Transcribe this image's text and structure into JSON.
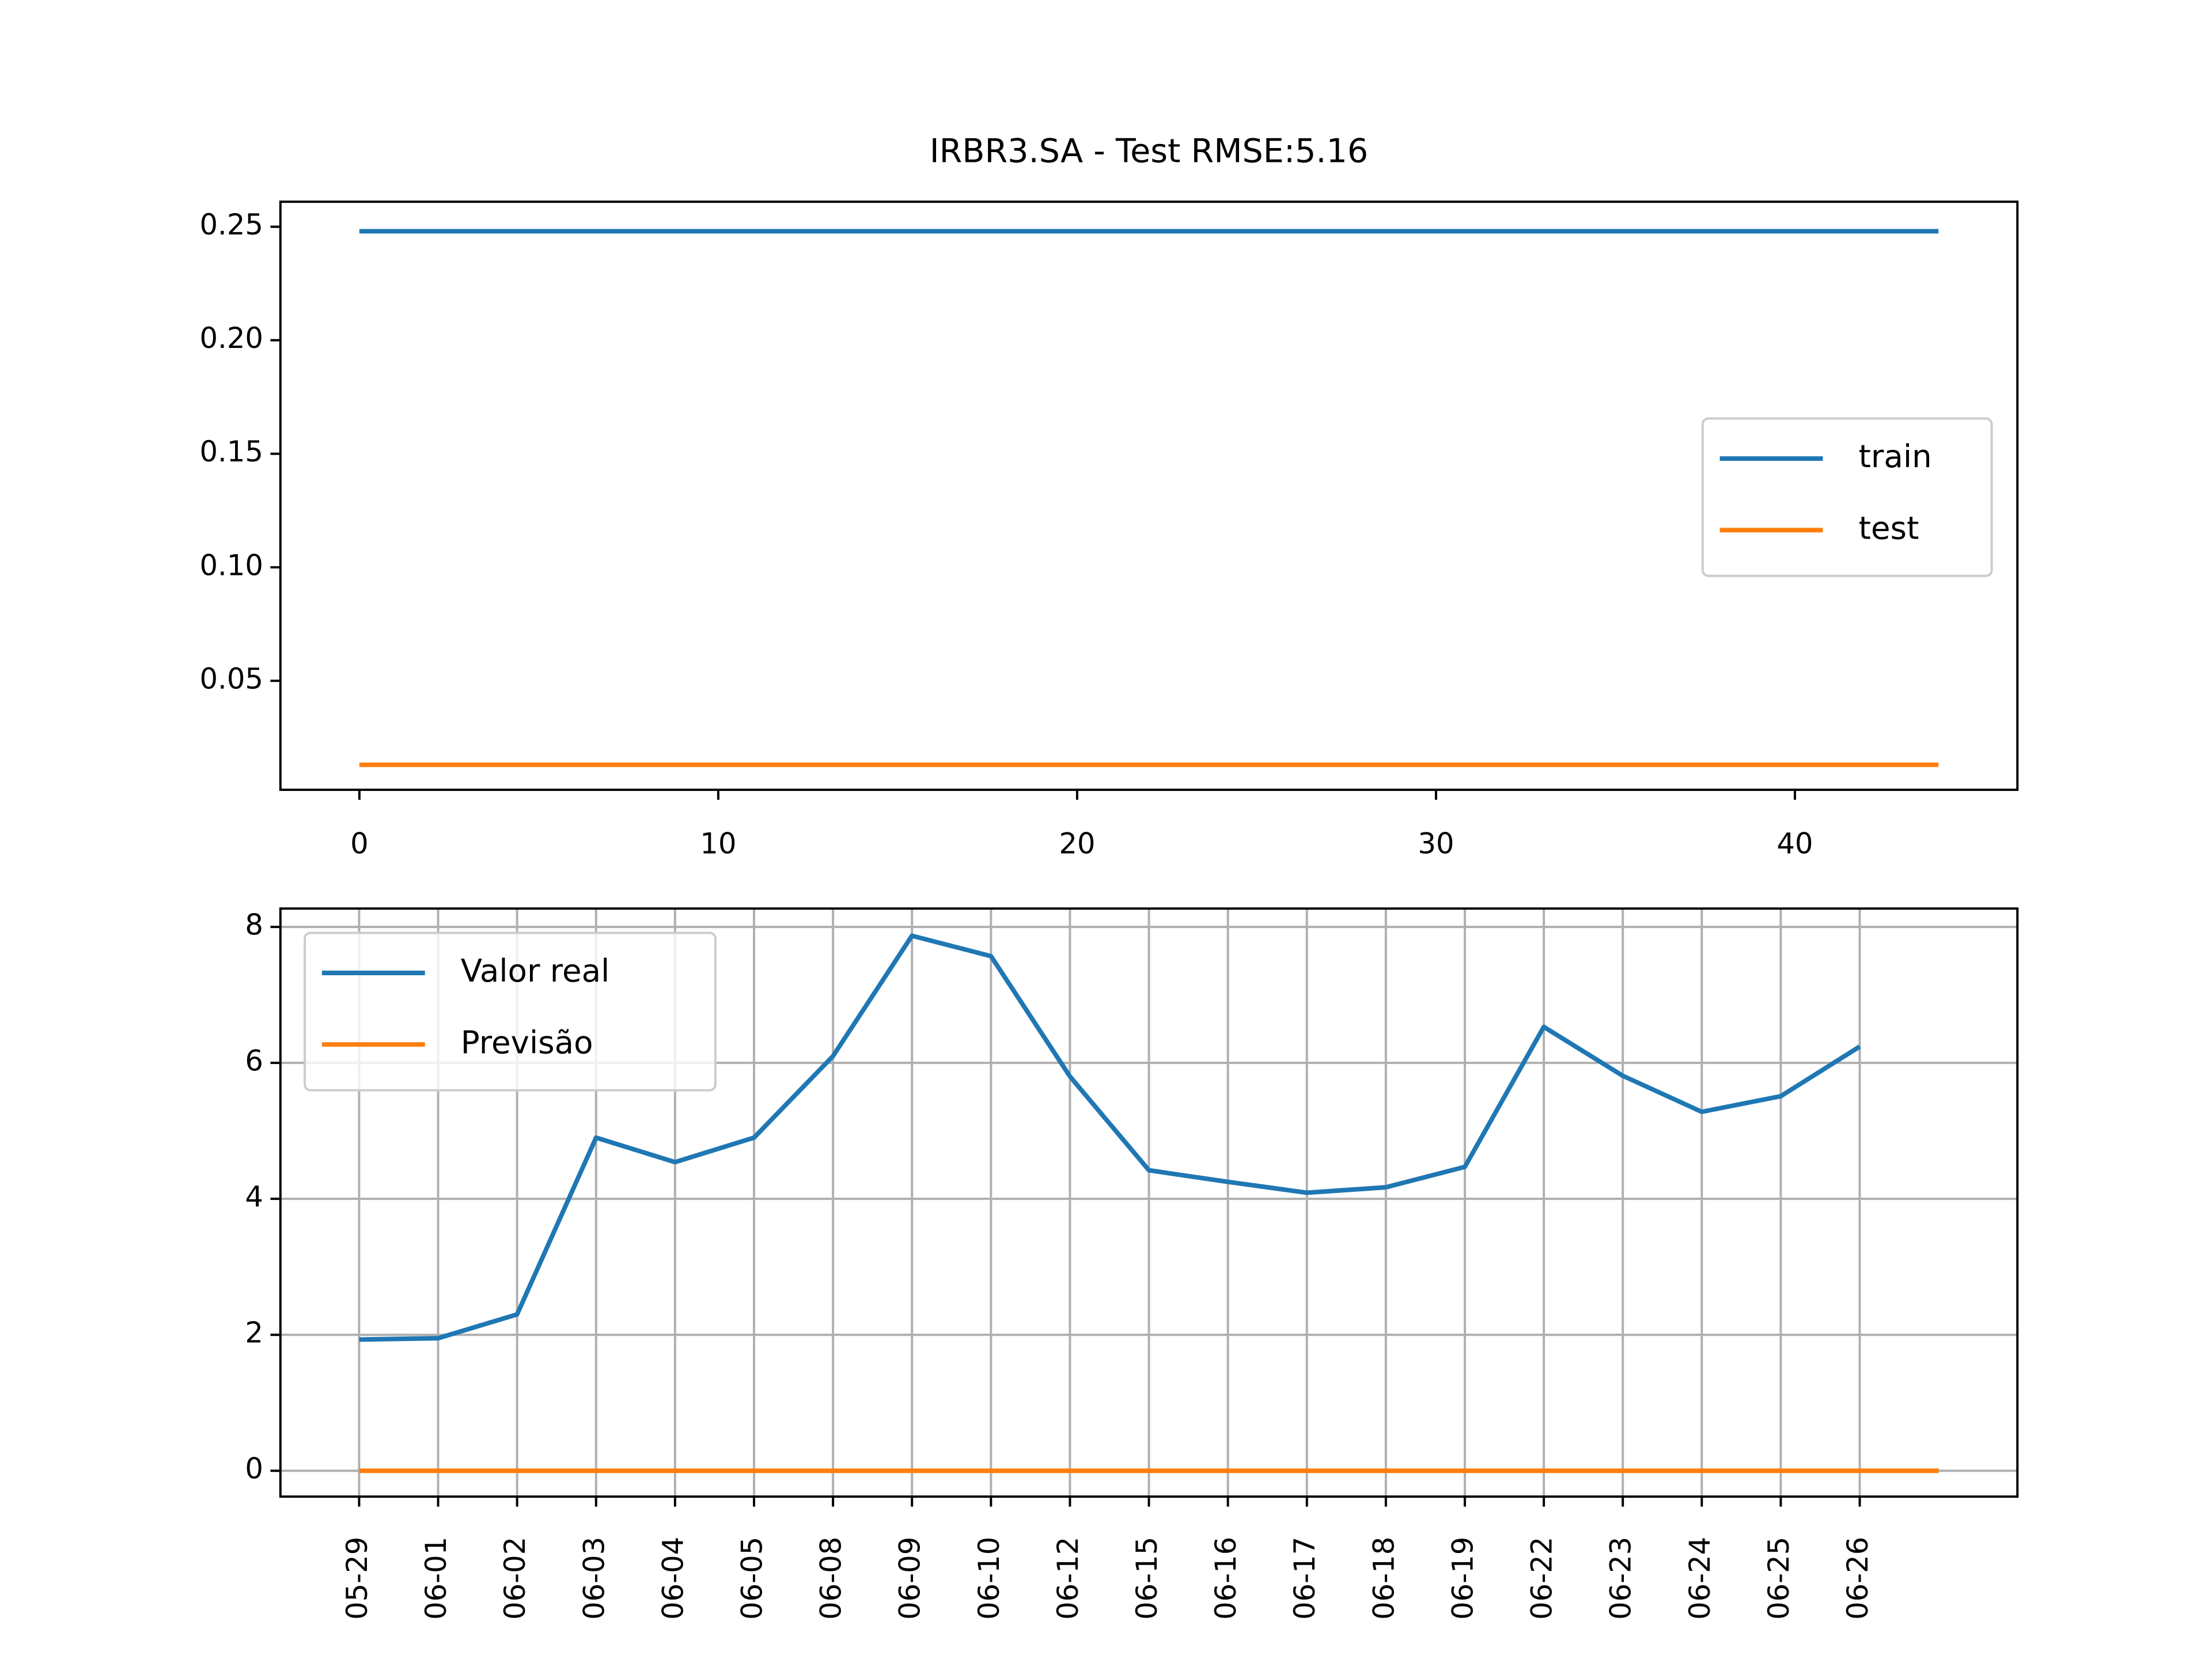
{
  "chart_data": [
    {
      "type": "line",
      "title": "IRBR3.SA - Test RMSE:5.16",
      "x": [
        0,
        1,
        2,
        3,
        4,
        5,
        6,
        7,
        8,
        9,
        10,
        11,
        12,
        13,
        14,
        15,
        16,
        17,
        18,
        19,
        20,
        21,
        22,
        23,
        24,
        25,
        26,
        27,
        28,
        29,
        30,
        31,
        32,
        33,
        34,
        35,
        36,
        37,
        38,
        39,
        40,
        41,
        42,
        43,
        44
      ],
      "series": [
        {
          "name": "train",
          "color": "#1f77b4",
          "values": [
            0.248,
            0.248,
            0.248,
            0.248,
            0.248,
            0.248,
            0.248,
            0.248,
            0.248,
            0.248,
            0.248,
            0.248,
            0.248,
            0.248,
            0.248,
            0.248,
            0.248,
            0.248,
            0.248,
            0.248,
            0.248,
            0.248,
            0.248,
            0.248,
            0.248,
            0.248,
            0.248,
            0.248,
            0.248,
            0.248,
            0.248,
            0.248,
            0.248,
            0.248,
            0.248,
            0.248,
            0.248,
            0.248,
            0.248,
            0.248,
            0.248,
            0.248,
            0.248,
            0.248,
            0.248
          ]
        },
        {
          "name": "test",
          "color": "#ff7f0e",
          "values": [
            0.013,
            0.013,
            0.013,
            0.013,
            0.013,
            0.013,
            0.013,
            0.013,
            0.013,
            0.013,
            0.013,
            0.013,
            0.013,
            0.013,
            0.013,
            0.013,
            0.013,
            0.013,
            0.013,
            0.013,
            0.013,
            0.013,
            0.013,
            0.013,
            0.013,
            0.013,
            0.013,
            0.013,
            0.013,
            0.013,
            0.013,
            0.013,
            0.013,
            0.013,
            0.013,
            0.013,
            0.013,
            0.013,
            0.013,
            0.013,
            0.013,
            0.013,
            0.013,
            0.013,
            0.013
          ]
        }
      ],
      "xlim": [
        -2.2,
        46.2
      ],
      "xticks": [
        0,
        10,
        20,
        30,
        40
      ],
      "ylim": [
        0.002,
        0.261
      ],
      "yticks": [
        0.05,
        {
          "value": 0.1,
          "label": "0.10"
        },
        0.15,
        {
          "value": 0.2,
          "label": "0.20"
        },
        0.25
      ],
      "grid": false,
      "legend": "right"
    },
    {
      "type": "line",
      "categories": [
        "05-29",
        "06-01",
        "06-02",
        "06-03",
        "06-04",
        "06-05",
        "06-08",
        "06-09",
        "06-10",
        "06-12",
        "06-15",
        "06-16",
        "06-17",
        "06-18",
        "06-19",
        "06-22",
        "06-23",
        "06-24",
        "06-25",
        "06-26",
        null
      ],
      "series": [
        {
          "name": "Valor real",
          "color": "#1f77b4",
          "values": [
            1.93,
            1.95,
            2.3,
            4.9,
            4.54,
            4.9,
            6.1,
            7.87,
            7.57,
            5.8,
            4.42,
            4.25,
            4.09,
            4.17,
            4.47,
            6.53,
            5.81,
            5.28,
            5.51,
            6.24,
            null
          ]
        },
        {
          "name": "Previsão",
          "color": "#ff7f0e",
          "values": [
            0,
            0,
            0,
            0,
            0,
            0,
            0,
            0,
            0,
            0,
            0,
            0,
            0,
            0,
            0,
            0,
            0,
            0,
            0,
            0,
            0
          ]
        }
      ],
      "ylim": [
        -0.38,
        8.27
      ],
      "yticks": [
        0,
        2,
        4,
        6,
        8
      ],
      "grid": true,
      "legend": "upper left"
    }
  ]
}
